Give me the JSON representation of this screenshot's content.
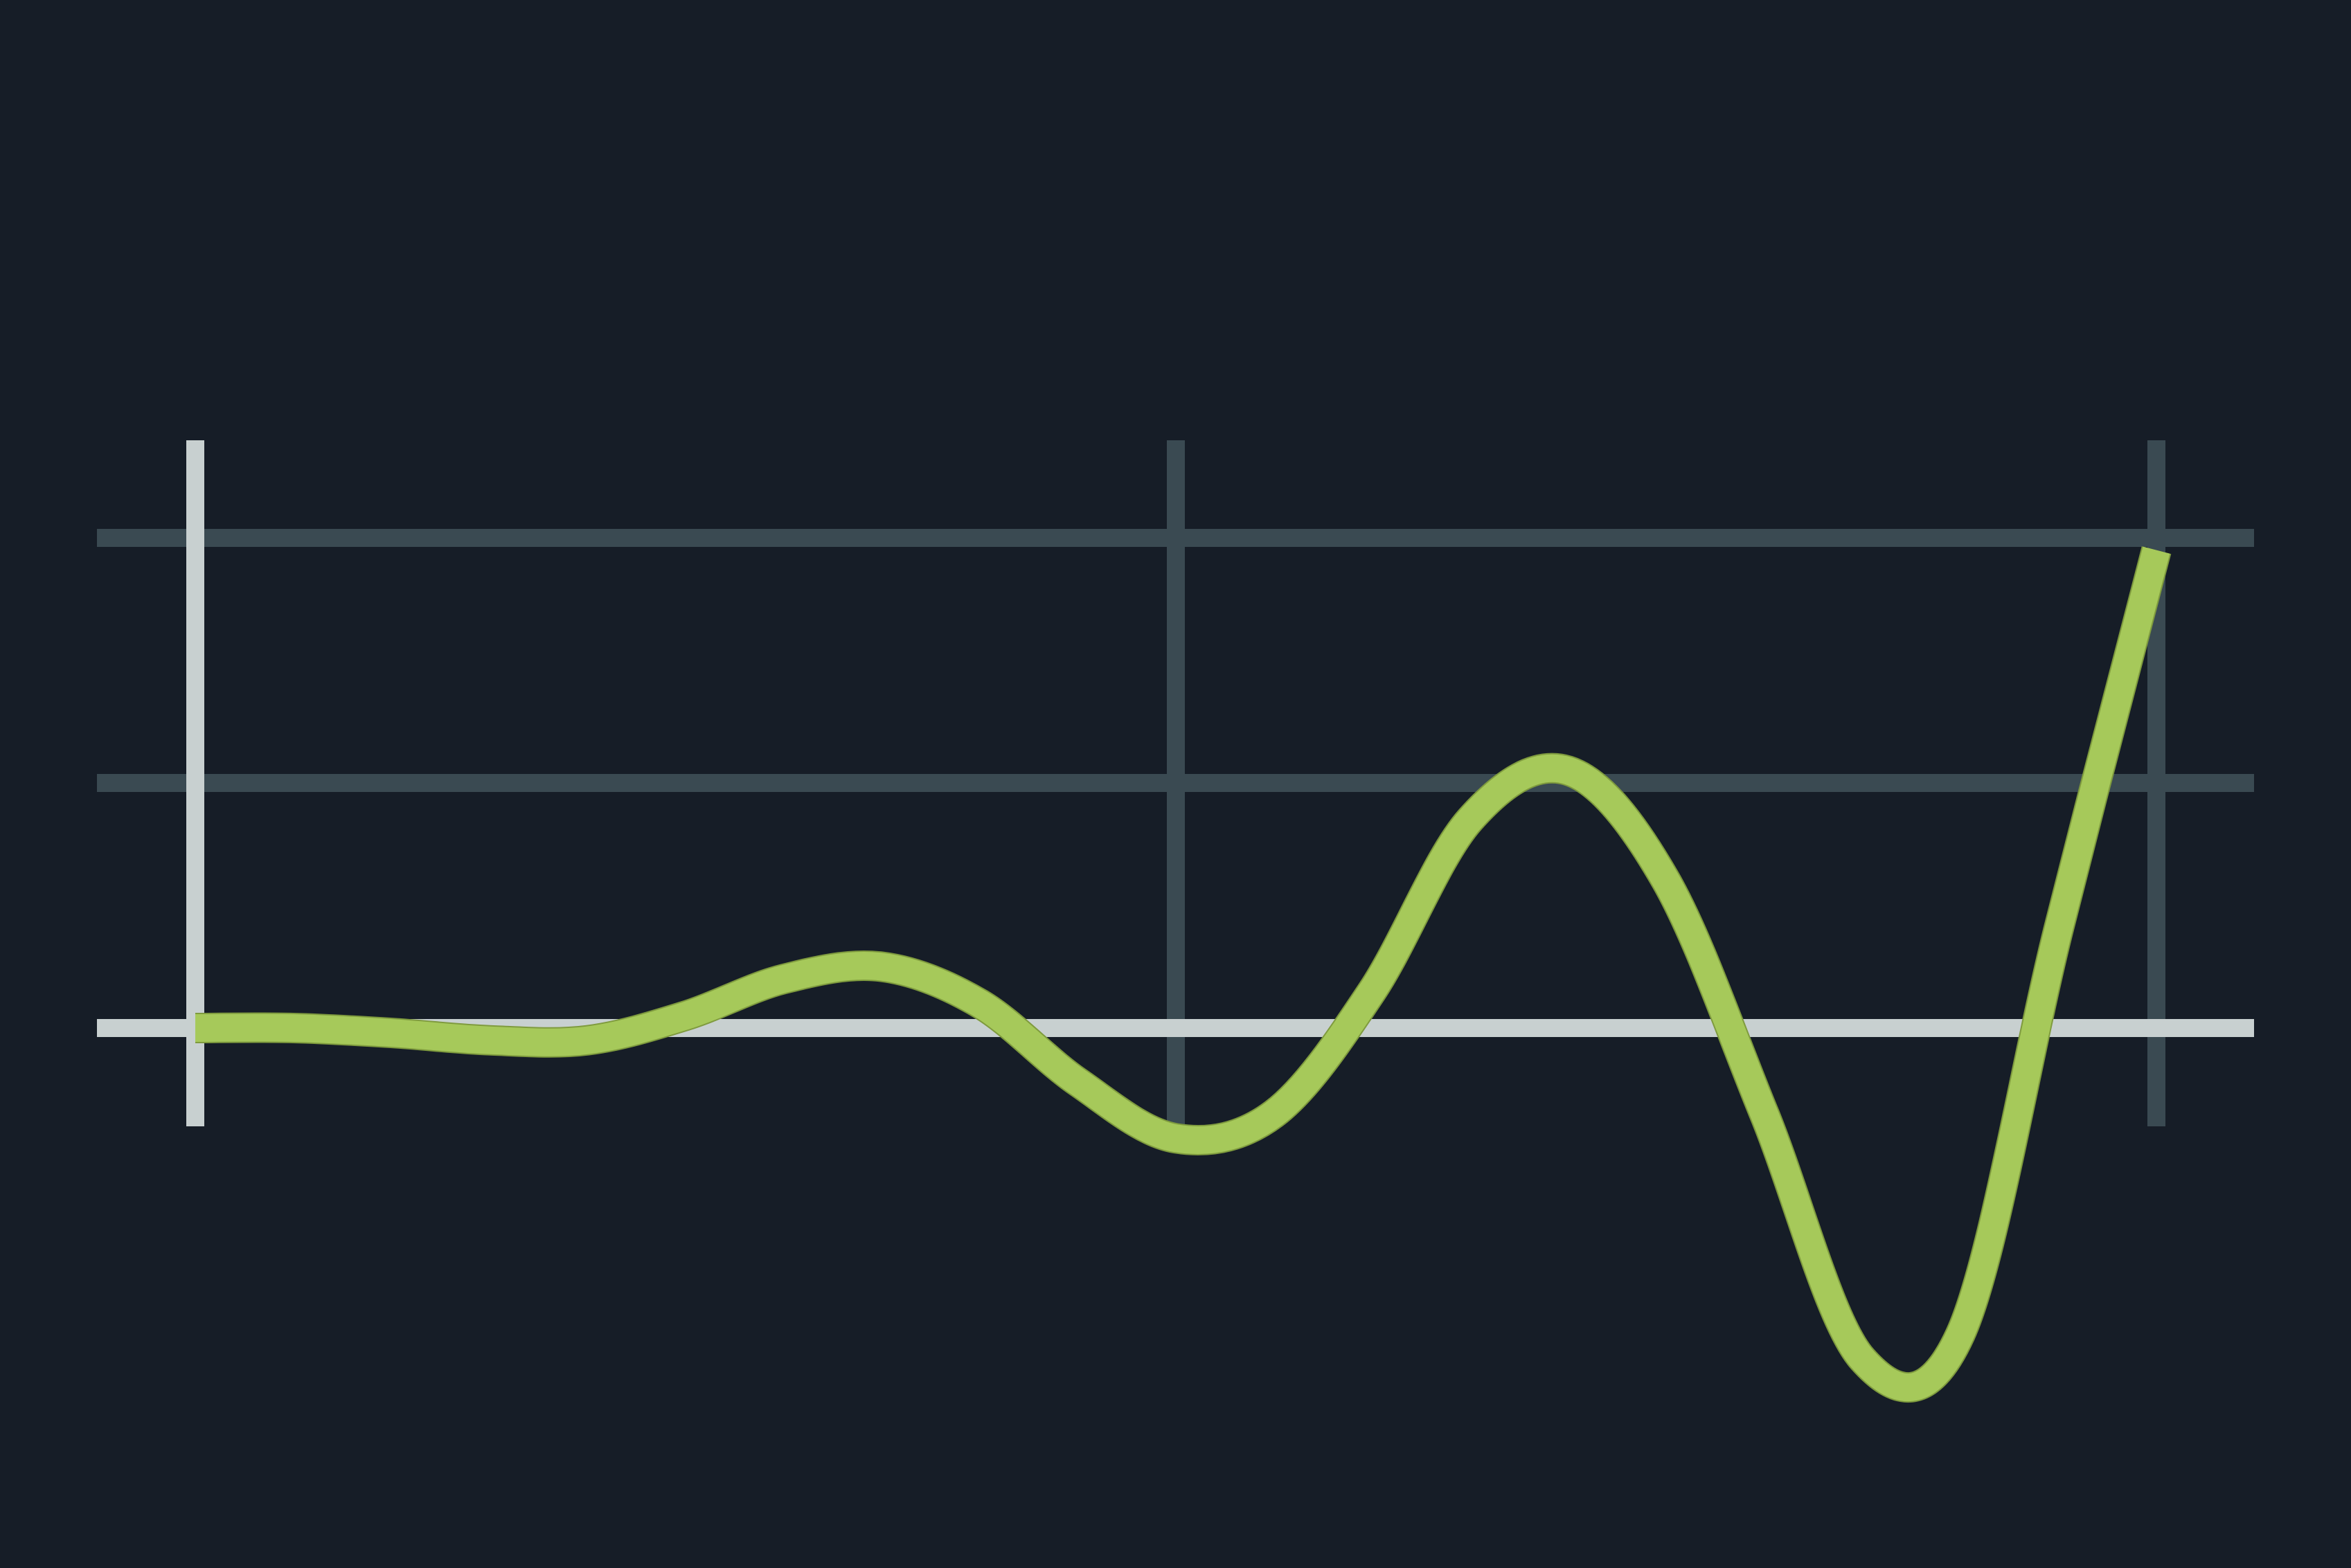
{
  "colors": {
    "background": "#161d27",
    "grid": "#3a4a52",
    "axis": "#c8d0d0",
    "line": "#a6c95a",
    "line_edge": "#7f9b3e"
  },
  "chart_data": {
    "type": "line",
    "title": "",
    "xlabel": "",
    "ylabel": "",
    "grid": true,
    "legend": "none",
    "xlim": [
      0,
      10
    ],
    "ylim": [
      -1.0,
      3.0
    ],
    "x_gridlines": [
      0,
      5,
      10
    ],
    "y_gridlines": [
      0,
      1,
      2
    ],
    "series": [
      {
        "x": [
          0,
          0.5,
          1,
          1.5,
          2,
          2.5,
          3,
          3.5,
          4,
          4.5,
          5,
          5.5,
          6,
          6.5,
          7,
          7.5,
          8,
          8.5,
          9,
          9.5,
          10
        ],
        "values": [
          0.0,
          0.0,
          -0.02,
          -0.05,
          -0.05,
          0.05,
          0.2,
          0.25,
          0.1,
          -0.22,
          -0.45,
          -0.35,
          0.15,
          0.85,
          1.05,
          0.6,
          -0.35,
          -1.35,
          -1.25,
          0.4,
          1.95
        ]
      }
    ]
  }
}
